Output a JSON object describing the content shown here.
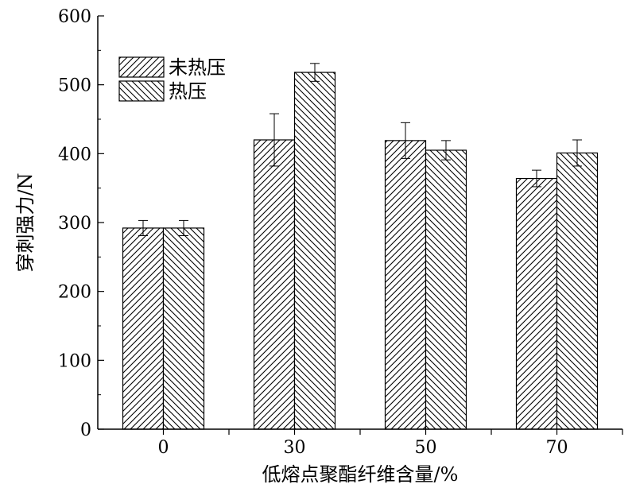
{
  "chart_data": {
    "type": "bar",
    "categories": [
      "0",
      "30",
      "50",
      "70"
    ],
    "series": [
      {
        "name": "未热压",
        "values": [
          292,
          420,
          419,
          364
        ],
        "errors": [
          11,
          38,
          26,
          12
        ],
        "hatch": "forward"
      },
      {
        "name": "热压",
        "values": [
          292,
          518,
          405,
          401
        ],
        "errors": [
          11,
          13,
          14,
          19
        ],
        "hatch": "back"
      }
    ],
    "xlabel": "低熔点聚酯纤维含量/%",
    "ylabel": "穿刺强力/N",
    "ylim": [
      0,
      600
    ],
    "yticks": [
      0,
      100,
      200,
      300,
      400,
      500,
      600
    ],
    "grid": false,
    "legend_position": "top-left"
  }
}
